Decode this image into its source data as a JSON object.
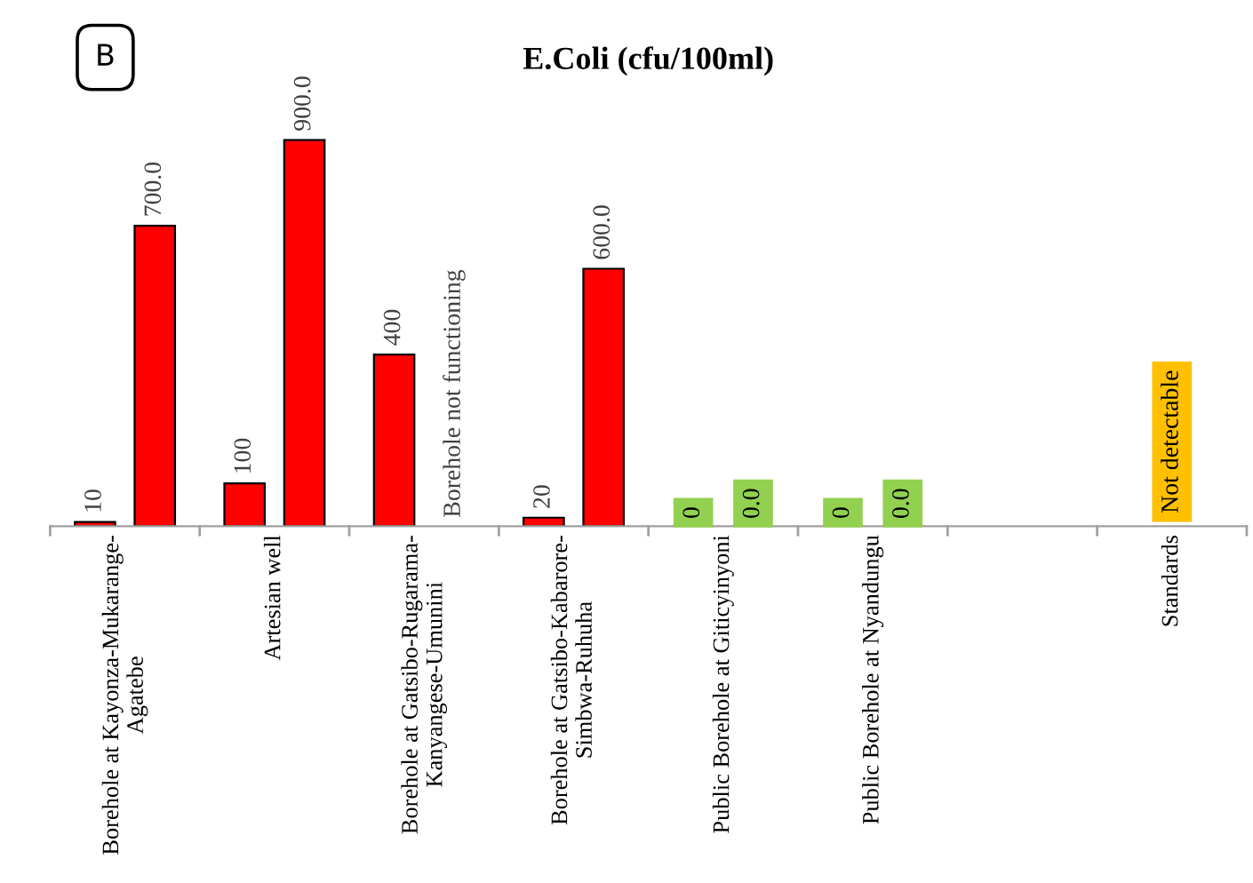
{
  "chart_data": {
    "type": "bar",
    "title": "E.Coli (cfu/100ml)",
    "categories": [
      "Borehole at Kayonza-Mukarange-\nAgatebe",
      "Artesian well",
      "Borehole at Gatsibo-Rugarama-\nKanyangese-Umunini",
      "Borehole at Gatsibo-Kabarore-\nSimbwa-Ruhuha",
      "Public Borehole at Giticyinyoni",
      "Public Borehole at Nyandungu",
      null,
      "Standards"
    ],
    "series": [
      {
        "color": "#ff0000",
        "values": [
          10,
          100,
          400,
          20,
          0,
          0,
          null,
          null
        ],
        "value_labels": [
          "10",
          "100",
          "400",
          "20",
          "0",
          "0",
          null,
          null
        ]
      },
      {
        "color": "#ff0000",
        "values": [
          700,
          900,
          null,
          600,
          0,
          0,
          null,
          null
        ],
        "value_labels": [
          "700.0",
          "900.0",
          "Borehole not functioning",
          "600.0",
          "0.0",
          "0.0",
          null,
          null
        ]
      }
    ],
    "tick_labels": "x",
    "grid": false,
    "legend": false,
    "annotations": [
      "B",
      "Not detectable"
    ]
  }
}
